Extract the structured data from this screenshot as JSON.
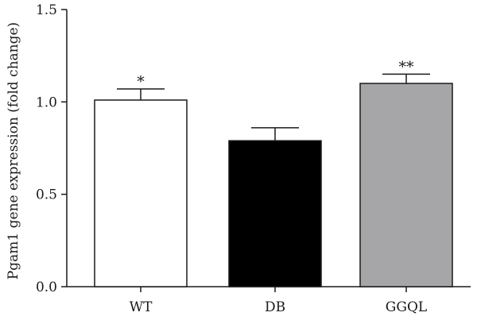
{
  "chart_data": {
    "type": "bar",
    "categories": [
      "WT",
      "DB",
      "GGQL"
    ],
    "values": [
      1.01,
      0.79,
      1.1
    ],
    "errors": [
      0.06,
      0.07,
      0.05
    ],
    "significance": [
      "*",
      "",
      "**"
    ],
    "bar_colors": [
      "#ffffff",
      "#000000",
      "#a6a6a8"
    ],
    "xlabel": "",
    "ylabel": "Pgam1 gene expression (fold change)",
    "ylim": [
      0,
      1.5
    ],
    "yticks": [
      0.0,
      0.5,
      1.0,
      1.5
    ],
    "ytick_labels": [
      "0.0",
      "0.5",
      "1.0",
      "1.5"
    ],
    "grid": false,
    "legend": "none"
  }
}
